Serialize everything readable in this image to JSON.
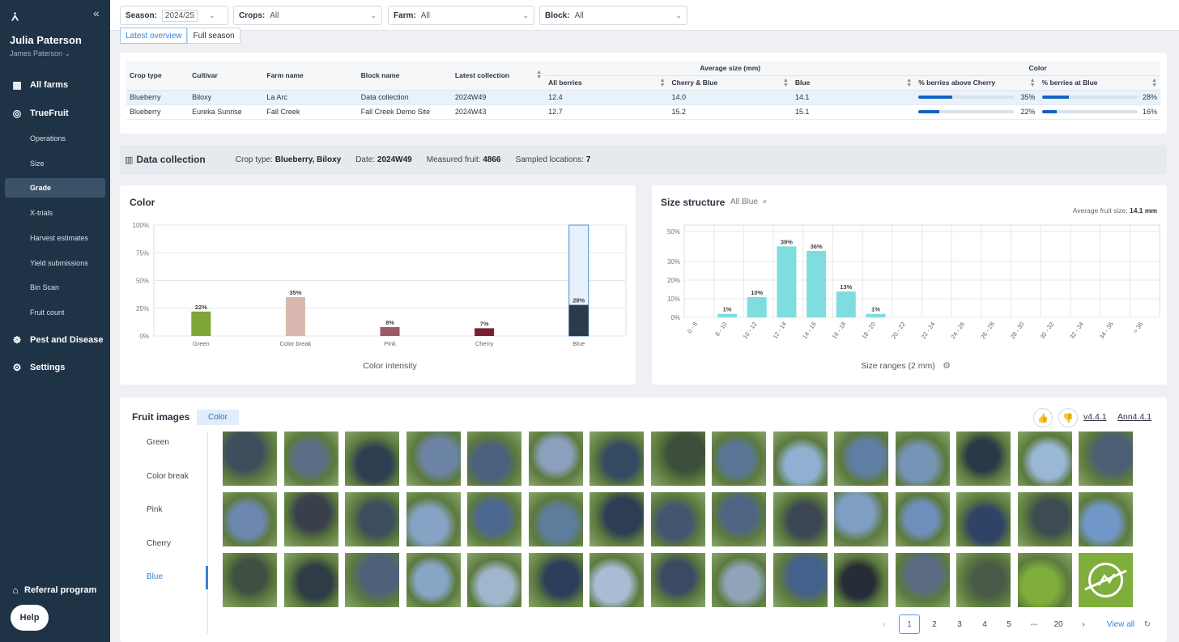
{
  "sidebar": {
    "logo": "⩑",
    "user_name": "Julia Paterson",
    "user_sub": "James Paterson",
    "main_items": [
      {
        "label": "All farms",
        "icon": "grid-icon"
      },
      {
        "label": "TrueFruit",
        "icon": "target-icon"
      },
      {
        "label": "Pest and Disease",
        "icon": "bug-icon"
      },
      {
        "label": "Settings",
        "icon": "gear-icon"
      }
    ],
    "sub_items": [
      "Operations",
      "Size",
      "Grade",
      "X-trials",
      "Harvest estimates",
      "Yield submissions",
      "Bin Scan",
      "Fruit count"
    ],
    "active_sub": "Grade",
    "referral": "Referral program",
    "help": "Help"
  },
  "filters": [
    {
      "label": "Season:",
      "value": "2024/25"
    },
    {
      "label": "Crops:",
      "value": "All"
    },
    {
      "label": "Farm:",
      "value": "All"
    },
    {
      "label": "Block:",
      "value": "All"
    }
  ],
  "view_tabs": [
    "Latest overview",
    "Full season"
  ],
  "table": {
    "headers": {
      "crop_type": "Crop type",
      "cultivar": "Cultivar",
      "farm_name": "Farm name",
      "block_name": "Block name",
      "latest_collection": "Latest collection",
      "avg_size_group": "Average size (mm)",
      "all_berries": "All berries",
      "cherry_blue": "Cherry & Blue",
      "blue": "Blue",
      "color_group": "Color",
      "pct_above_cherry": "% berries above Cherry",
      "pct_at_blue": "% berries at Blue"
    },
    "rows": [
      {
        "crop": "Blueberry",
        "cultivar": "Biloxy",
        "farm": "La Arc",
        "block": "Data collection",
        "latest": "2024W49",
        "all": "12.4",
        "cb": "14.0",
        "blue": "14.1",
        "above_cherry": 35,
        "above_cherry_label": "35%",
        "at_blue": 28,
        "at_blue_label": "28%"
      },
      {
        "crop": "Blueberry",
        "cultivar": "Eureka Sunrise",
        "farm": "Fall Creek",
        "block": "Fall Creek Demo Site",
        "latest": "2024W43",
        "all": "12.7",
        "cb": "15.2",
        "blue": "15.1",
        "above_cherry": 22,
        "above_cherry_label": "22%",
        "at_blue": 16,
        "at_blue_label": "16%"
      }
    ]
  },
  "data_collection": {
    "title": "Data collection",
    "crop_label": "Crop type:",
    "crop_value": "Blueberry, Biloxy",
    "date_label": "Date:",
    "date_value": "2024W49",
    "measured_label": "Measured fruit:",
    "measured_value": "4866",
    "locations_label": "Sampled locations:",
    "locations_value": "7"
  },
  "chart_data": [
    {
      "type": "bar",
      "title": "Color",
      "xlabel": "Color intensity",
      "ylabel": "",
      "categories": [
        "Green",
        "Color break",
        "Pink",
        "Cherry",
        "Blue"
      ],
      "values": [
        22,
        35,
        8,
        7,
        28
      ],
      "value_labels": [
        "22%",
        "35%",
        "8%",
        "7%",
        "28%"
      ],
      "colors": [
        "#7ea536",
        "#d8b8ae",
        "#9b5a64",
        "#7a2030",
        "#2b3a4c"
      ],
      "y_ticks": [
        "0%",
        "25%",
        "50%",
        "75%",
        "100%"
      ],
      "ylim": [
        0,
        100
      ],
      "highlight_category": "Blue",
      "grid": true
    },
    {
      "type": "bar",
      "title": "Size structure",
      "filter_chip": "All Blue",
      "subtitle_label": "Average fruit size:",
      "subtitle_value": "14.1 mm",
      "xlabel": "Size ranges (2 mm)",
      "categories": [
        "0 - 8",
        "8 - 10",
        "10 - 12",
        "12 - 14",
        "14 - 16",
        "16 - 18",
        "18 - 20",
        "20 - 22",
        "22 - 24",
        "24 - 26",
        "26 - 28",
        "28 - 30",
        "30 - 32",
        "32 - 34",
        "34 - 36",
        "> 36"
      ],
      "values": [
        0,
        1,
        10,
        39,
        36,
        13,
        1,
        0,
        0,
        0,
        0,
        0,
        0,
        0,
        0,
        0
      ],
      "value_labels": [
        "",
        "1%",
        "10%",
        "39%",
        "36%",
        "13%",
        "1%",
        "",
        "",
        "",
        "",
        "",
        "",
        "",
        "",
        ""
      ],
      "y_ticks": [
        "0%",
        "10%",
        "20%",
        "30%",
        "50%"
      ],
      "bar_color": "#7fdde0",
      "grid": true
    }
  ],
  "fruit_images": {
    "title": "Fruit images",
    "tag": "Color",
    "categories": [
      "Green",
      "Color break",
      "Pink",
      "Cherry",
      "Blue"
    ],
    "active_category": "Blue",
    "version": "v4.4.1",
    "annotation": "Ann4.4.1",
    "image_tones": [
      "#3f4d5c",
      "#5a6e86",
      "#2e3f52",
      "#6c84a6",
      "#4a607c",
      "#8aa0bd",
      "#344a63",
      "#3d4f3a",
      "#5a7596",
      "#8fb0d0",
      "#5f7ea3",
      "#7694b6",
      "#2b3848",
      "#9bb7d6",
      "#4b5e74",
      "#6d87b0",
      "#3a3f4c",
      "#3c4d5e",
      "#86a2c4",
      "#4d6890",
      "#5d7d9d",
      "#2c3d54",
      "#43566f",
      "#4e6584",
      "#3d4754",
      "#7f9ec2",
      "#6e8fbc",
      "#2f4366",
      "#3e4b52",
      "#7197c9",
      "#3f4f42",
      "#2f3b45",
      "#4e617a",
      "#86a6c6",
      "#9fb6cc",
      "#2d3e5a",
      "#a8bcd6",
      "#3a4a63",
      "#8fa4b8",
      "#44608c",
      "#262d36",
      "#5a6b82",
      "#4a5a48",
      "#7fae3c"
    ],
    "actions": [
      "thumbs-up-icon",
      "thumbs-down-icon"
    ]
  },
  "pagination": {
    "pages": [
      "1",
      "2",
      "3",
      "4",
      "5"
    ],
    "ellipsis": "•••",
    "last": "20",
    "current": "1",
    "view_all": "View all"
  }
}
